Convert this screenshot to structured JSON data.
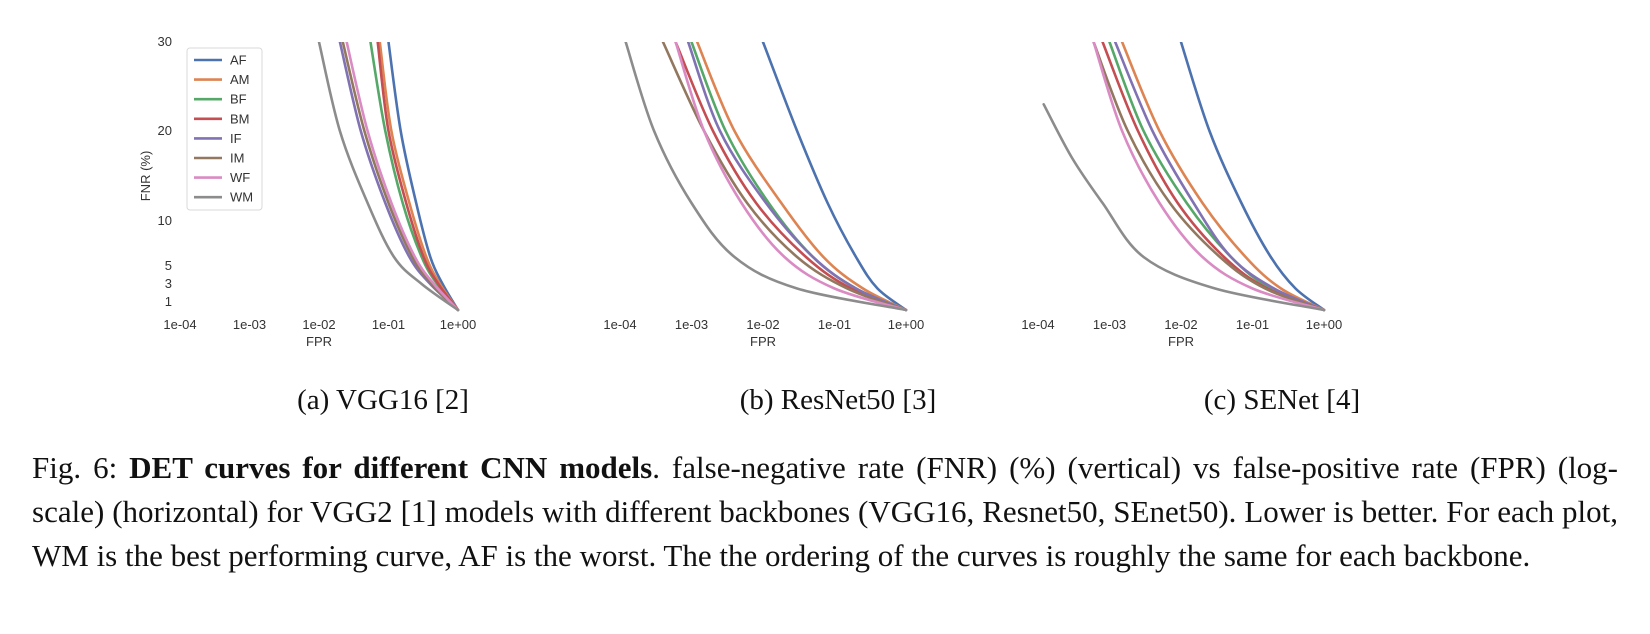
{
  "colors": {
    "AF": "#4c72b0",
    "AM": "#dd8452",
    "BF": "#55a868",
    "BM": "#c44e52",
    "IF": "#8172b3",
    "IM": "#937860",
    "WF": "#da8bc3",
    "WM": "#8c8c8c"
  },
  "chart_data": [
    {
      "type": "line",
      "title": "",
      "xlabel": "FPR",
      "ylabel": "FNR (%)",
      "x_scale": "log",
      "x_ticks": [
        "1e-04",
        "1e-03",
        "1e-02",
        "1e-01",
        "1e+00"
      ],
      "y_ticks": [
        "1",
        "3",
        "5",
        "10",
        "20",
        "30"
      ],
      "legend": {
        "position": "top-left",
        "entries": [
          "AF",
          "AM",
          "BF",
          "BM",
          "IF",
          "IM",
          "WF",
          "WM"
        ]
      },
      "grid": false,
      "series": [
        {
          "name": "AF",
          "points": [
            [
              0.1,
              30
            ],
            [
              0.15,
              20
            ],
            [
              0.25,
              12
            ],
            [
              0.4,
              6
            ],
            [
              0.6,
              3
            ],
            [
              1.0,
              0
            ]
          ]
        },
        {
          "name": "AM",
          "points": [
            [
              0.075,
              30
            ],
            [
              0.11,
              20
            ],
            [
              0.2,
              12
            ],
            [
              0.35,
              6
            ],
            [
              0.55,
              3
            ],
            [
              1.0,
              0
            ]
          ]
        },
        {
          "name": "BF",
          "points": [
            [
              0.055,
              30
            ],
            [
              0.09,
              20
            ],
            [
              0.16,
              12
            ],
            [
              0.3,
              6
            ],
            [
              0.5,
              3
            ],
            [
              1.0,
              0
            ]
          ]
        },
        {
          "name": "BM",
          "points": [
            [
              0.07,
              30
            ],
            [
              0.1,
              20
            ],
            [
              0.18,
              12
            ],
            [
              0.32,
              6
            ],
            [
              0.52,
              3
            ],
            [
              1.0,
              0
            ]
          ]
        },
        {
          "name": "IF",
          "points": [
            [
              0.02,
              30
            ],
            [
              0.04,
              20
            ],
            [
              0.09,
              12
            ],
            [
              0.2,
              6
            ],
            [
              0.4,
              3
            ],
            [
              1.0,
              0
            ]
          ]
        },
        {
          "name": "IM",
          "points": [
            [
              0.022,
              30
            ],
            [
              0.045,
              20
            ],
            [
              0.1,
              12
            ],
            [
              0.22,
              6
            ],
            [
              0.42,
              3
            ],
            [
              1.0,
              0
            ]
          ]
        },
        {
          "name": "WF",
          "points": [
            [
              0.025,
              30
            ],
            [
              0.05,
              20
            ],
            [
              0.11,
              12
            ],
            [
              0.24,
              6
            ],
            [
              0.45,
              3
            ],
            [
              1.0,
              0
            ]
          ]
        },
        {
          "name": "WM",
          "points": [
            [
              0.01,
              30
            ],
            [
              0.02,
              20
            ],
            [
              0.05,
              12
            ],
            [
              0.12,
              6
            ],
            [
              0.3,
              3
            ],
            [
              1.0,
              0
            ]
          ]
        }
      ]
    },
    {
      "type": "line",
      "title": "",
      "xlabel": "FPR",
      "ylabel": "",
      "x_scale": "log",
      "x_ticks": [
        "1e-04",
        "1e-03",
        "1e-02",
        "1e-01",
        "1e+00"
      ],
      "y_ticks": [],
      "grid": false,
      "series": [
        {
          "name": "AF",
          "points": [
            [
              0.01,
              30
            ],
            [
              0.03,
              20
            ],
            [
              0.08,
              12
            ],
            [
              0.2,
              6
            ],
            [
              0.4,
              2.5
            ],
            [
              1.0,
              0
            ]
          ]
        },
        {
          "name": "AM",
          "points": [
            [
              0.0012,
              30
            ],
            [
              0.004,
              20
            ],
            [
              0.018,
              12
            ],
            [
              0.07,
              6
            ],
            [
              0.25,
              2.5
            ],
            [
              1.0,
              0
            ]
          ]
        },
        {
          "name": "BF",
          "points": [
            [
              0.001,
              30
            ],
            [
              0.003,
              20
            ],
            [
              0.012,
              12
            ],
            [
              0.05,
              6
            ],
            [
              0.2,
              2.5
            ],
            [
              1.0,
              0
            ]
          ]
        },
        {
          "name": "BM",
          "points": [
            [
              0.0006,
              30
            ],
            [
              0.002,
              20
            ],
            [
              0.008,
              12
            ],
            [
              0.04,
              6
            ],
            [
              0.17,
              2.5
            ],
            [
              1.0,
              0
            ]
          ]
        },
        {
          "name": "IF",
          "points": [
            [
              0.0009,
              30
            ],
            [
              0.0025,
              20
            ],
            [
              0.011,
              12
            ],
            [
              0.05,
              6
            ],
            [
              0.2,
              2.5
            ],
            [
              1.0,
              0
            ]
          ]
        },
        {
          "name": "IM",
          "points": [
            [
              0.0004,
              30
            ],
            [
              0.0015,
              20
            ],
            [
              0.006,
              12
            ],
            [
              0.03,
              6
            ],
            [
              0.15,
              2.5
            ],
            [
              1.0,
              0
            ]
          ]
        },
        {
          "name": "WF",
          "points": [
            [
              0.0006,
              30
            ],
            [
              0.0015,
              20
            ],
            [
              0.005,
              12
            ],
            [
              0.02,
              6
            ],
            [
              0.1,
              2.5
            ],
            [
              1.0,
              0
            ]
          ]
        },
        {
          "name": "WM",
          "points": [
            [
              0.00012,
              30
            ],
            [
              0.0003,
              20
            ],
            [
              0.001,
              12
            ],
            [
              0.004,
              6
            ],
            [
              0.03,
              2.5
            ],
            [
              1.0,
              0
            ]
          ]
        }
      ]
    },
    {
      "type": "line",
      "title": "",
      "xlabel": "FPR",
      "ylabel": "",
      "x_scale": "log",
      "x_ticks": [
        "1e-04",
        "1e-03",
        "1e-02",
        "1e-01",
        "1e+00"
      ],
      "y_ticks": [],
      "grid": false,
      "series": [
        {
          "name": "AF",
          "points": [
            [
              0.01,
              30
            ],
            [
              0.025,
              20
            ],
            [
              0.07,
              12
            ],
            [
              0.18,
              6
            ],
            [
              0.4,
              2.5
            ],
            [
              1.0,
              0
            ]
          ]
        },
        {
          "name": "AM",
          "points": [
            [
              0.0015,
              30
            ],
            [
              0.005,
              20
            ],
            [
              0.02,
              12
            ],
            [
              0.08,
              6
            ],
            [
              0.25,
              2.5
            ],
            [
              1.0,
              0
            ]
          ]
        },
        {
          "name": "BF",
          "points": [
            [
              0.001,
              30
            ],
            [
              0.003,
              20
            ],
            [
              0.012,
              12
            ],
            [
              0.05,
              6
            ],
            [
              0.18,
              2.5
            ],
            [
              1.0,
              0
            ]
          ]
        },
        {
          "name": "BM",
          "points": [
            [
              0.0008,
              30
            ],
            [
              0.0025,
              20
            ],
            [
              0.009,
              12
            ],
            [
              0.04,
              6
            ],
            [
              0.16,
              2.5
            ],
            [
              1.0,
              0
            ]
          ]
        },
        {
          "name": "IF",
          "points": [
            [
              0.0012,
              30
            ],
            [
              0.004,
              20
            ],
            [
              0.015,
              12
            ],
            [
              0.05,
              6
            ],
            [
              0.2,
              2.5
            ],
            [
              1.0,
              0
            ]
          ]
        },
        {
          "name": "IM",
          "points": [
            [
              0.0006,
              30
            ],
            [
              0.0018,
              20
            ],
            [
              0.007,
              12
            ],
            [
              0.035,
              6
            ],
            [
              0.15,
              2.5
            ],
            [
              1.0,
              0
            ]
          ]
        },
        {
          "name": "WF",
          "points": [
            [
              0.0006,
              30
            ],
            [
              0.0015,
              20
            ],
            [
              0.005,
              12
            ],
            [
              0.02,
              6
            ],
            [
              0.1,
              2.5
            ],
            [
              1.0,
              0
            ]
          ]
        },
        {
          "name": "WM",
          "points": [
            [
              0.00012,
              23
            ],
            [
              0.0003,
              17
            ],
            [
              0.0008,
              12
            ],
            [
              0.003,
              6
            ],
            [
              0.03,
              2.5
            ],
            [
              1.0,
              0
            ]
          ]
        }
      ]
    }
  ],
  "subcaptions": [
    "(a) VGG16 [2]",
    "(b) ResNet50 [3]",
    "(c) SENet [4]"
  ],
  "caption": {
    "prefix": "Fig. 6: ",
    "bold": "DET curves for different CNN models",
    "rest": ". false-negative rate (FNR) (%) (vertical) vs false-positive rate (FPR) (log-scale) (horizontal) for VGG2 [1] models with different backbones (VGG16, Resnet50, SEnet50). Lower is better. For each plot, WM is the best performing curve, AF is the worst. The the ordering of the curves is roughly the same for each backbone."
  }
}
